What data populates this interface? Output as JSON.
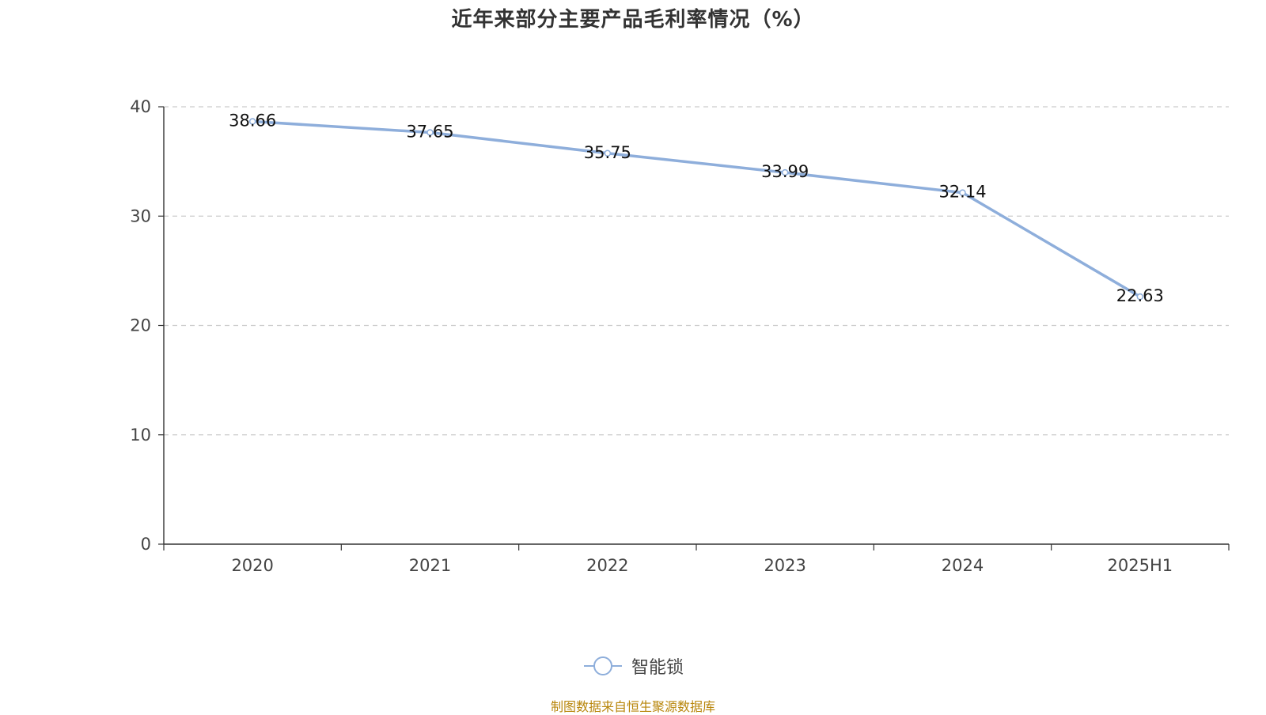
{
  "chart_data": {
    "type": "line",
    "title": "近年来部分主要产品毛利率情况（%）",
    "categories": [
      "2020",
      "2021",
      "2022",
      "2023",
      "2024",
      "2025H1"
    ],
    "series": [
      {
        "name": "智能锁",
        "values": [
          38.66,
          37.65,
          35.75,
          33.99,
          32.14,
          22.63
        ],
        "labels": [
          "38.66",
          "37.65",
          "35.75",
          "33.99",
          "32.14",
          "22.63"
        ],
        "color": "#8eaedb"
      }
    ],
    "ylim": [
      0,
      40
    ],
    "yticks": [
      "0",
      "10",
      "20",
      "30",
      "40"
    ],
    "ytick_values": [
      0,
      10,
      20,
      30,
      40
    ],
    "xlabel": "",
    "ylabel": "",
    "grid": "horizontal dashed",
    "legend": "bottom-center"
  },
  "source": "制图数据来自恒生聚源数据库",
  "colors": {
    "line": "#8eaedb",
    "grid": "#cccccc",
    "axis": "#333333",
    "source": "#b8860b"
  }
}
